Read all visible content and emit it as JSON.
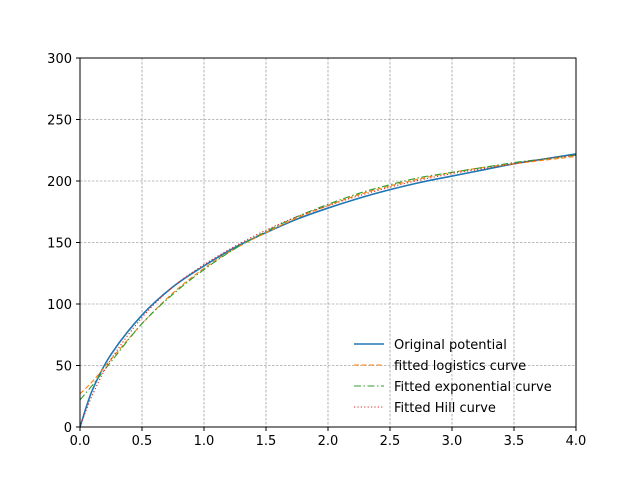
{
  "chart_data": {
    "type": "line",
    "title": "",
    "xlabel": "",
    "ylabel": "",
    "xlim": [
      0,
      4
    ],
    "ylim": [
      0,
      300
    ],
    "xticks": [
      "0.0",
      "0.5",
      "1.0",
      "1.5",
      "2.0",
      "2.5",
      "3.0",
      "3.5",
      "4.0"
    ],
    "yticks": [
      "0",
      "50",
      "100",
      "150",
      "200",
      "250",
      "300"
    ],
    "grid": true,
    "legend_position": "lower-right",
    "x": [
      0,
      0.1,
      0.25,
      0.5,
      0.75,
      1.0,
      1.25,
      1.5,
      1.75,
      2.0,
      2.25,
      2.5,
      2.75,
      3.0,
      3.25,
      3.5,
      3.75,
      4.0
    ],
    "series": [
      {
        "name": "Original potential",
        "color": "#1f77b4",
        "style": "solid",
        "values": [
          0,
          30,
          59,
          91,
          114,
          131,
          146,
          158,
          169,
          178,
          186,
          193,
          199,
          204,
          209,
          214,
          218,
          222
        ]
      },
      {
        "name": "fitted logistics curve",
        "color": "#ff7f0e",
        "style": "dashed",
        "values": [
          27,
          37,
          55,
          84,
          109,
          129,
          145,
          158,
          170,
          180,
          189,
          196,
          202,
          207,
          211,
          214,
          217,
          220
        ]
      },
      {
        "name": "Fitted exponential curve",
        "color": "#2ca02c",
        "style": "dashdot",
        "values": [
          22,
          34,
          53,
          84,
          108,
          128,
          145,
          159,
          171,
          181,
          190,
          197,
          203,
          207,
          211,
          215,
          218,
          221
        ]
      },
      {
        "name": "Fitted Hill curve",
        "color": "#d62728",
        "style": "dotted",
        "values": [
          0,
          26,
          55,
          89,
          114,
          132,
          147,
          160,
          171,
          180,
          188,
          195,
          201,
          206,
          210,
          214,
          218,
          221
        ]
      }
    ]
  }
}
